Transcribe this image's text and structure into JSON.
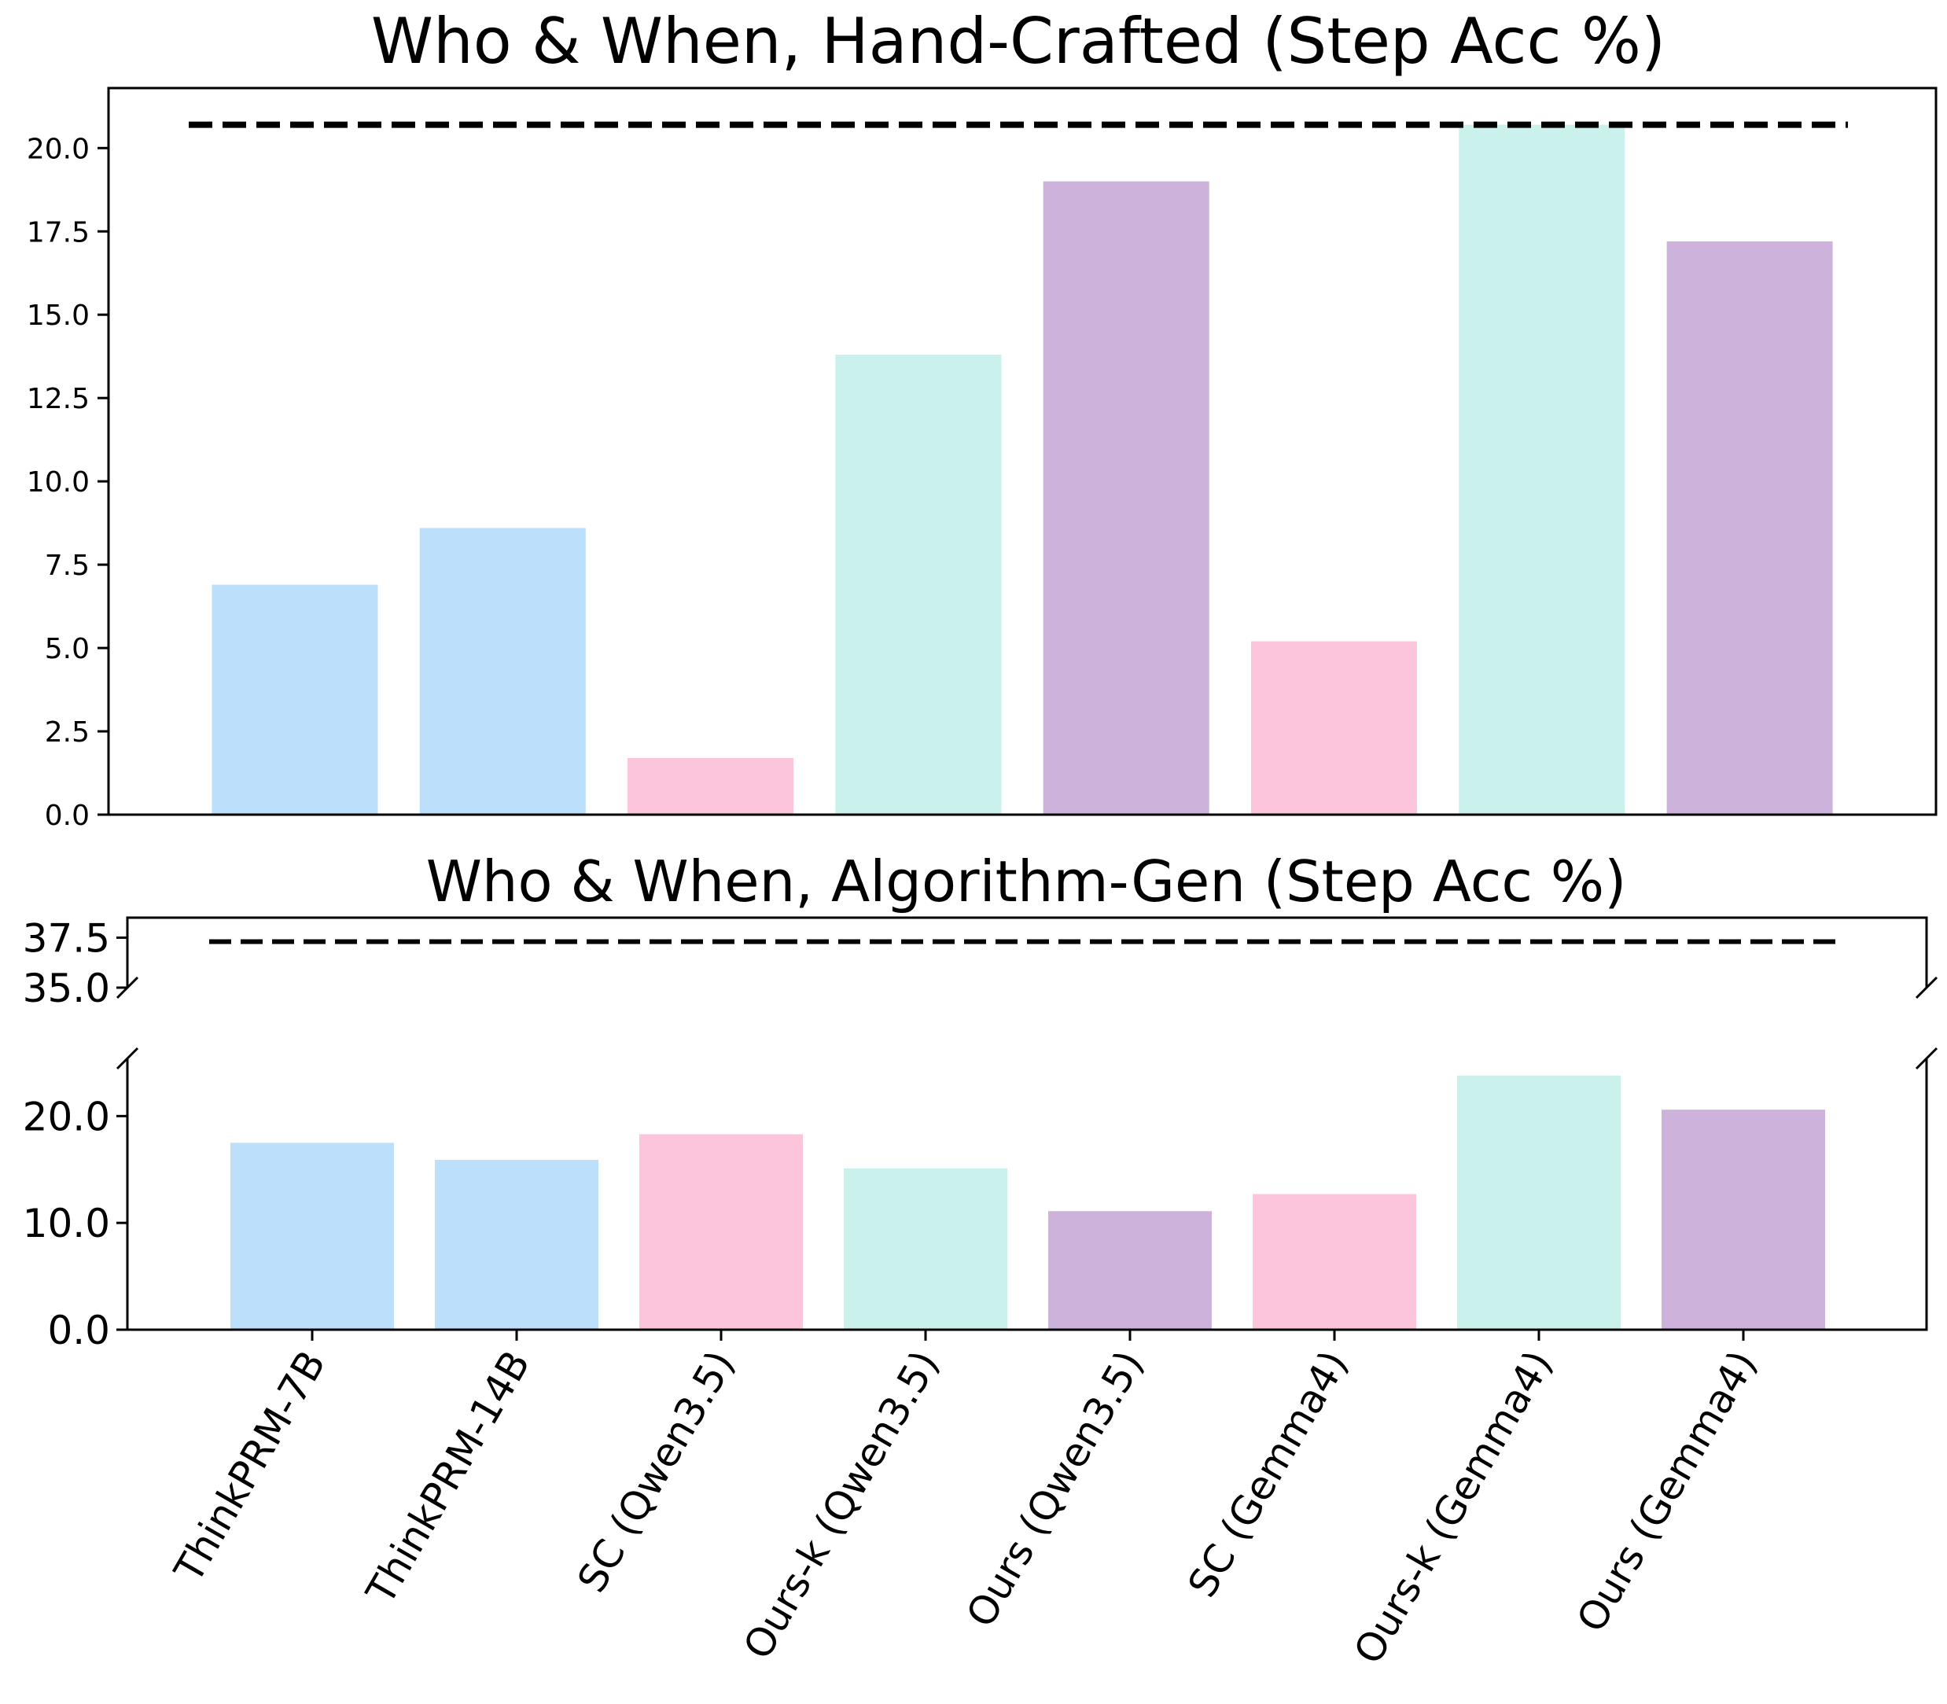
{
  "chart_data": [
    {
      "type": "bar",
      "title": "Who & When, Hand-Crafted (Step Acc %)",
      "categories": [
        "ThinkPRM-7B",
        "ThinkPRM-14B",
        "SC (Qwen3.5)",
        "Ours-k (Qwen3.5)",
        "Ours (Qwen3.5)",
        "SC (Gemma4)",
        "Ours-k (Gemma4)",
        "Ours (Gemma4)"
      ],
      "values": [
        6.9,
        8.6,
        1.7,
        13.8,
        19.0,
        5.2,
        20.7,
        17.2
      ],
      "colors": [
        "#bcdffb",
        "#bcdffb",
        "#fcc5dc",
        "#cbf1ed",
        "#cdb3db",
        "#fcc5dc",
        "#cbf1ed",
        "#cdb3db"
      ],
      "reference_line": 20.7,
      "ylim": [
        0,
        21.8
      ],
      "yticks": [
        "0.0",
        "2.5",
        "5.0",
        "7.5",
        "10.0",
        "12.5",
        "15.0",
        "17.5",
        "20.0"
      ],
      "show_xticks": false,
      "grid": false
    },
    {
      "type": "bar",
      "title": "Who & When, Algorithm-Gen (Step Acc %)",
      "categories": [
        "ThinkPRM-7B",
        "ThinkPRM-14B",
        "SC (Qwen3.5)",
        "Ours-k (Qwen3.5)",
        "Ours (Qwen3.5)",
        "SC (Gemma4)",
        "Ours-k (Gemma4)",
        "Ours (Gemma4)"
      ],
      "values": [
        17.5,
        15.9,
        18.3,
        15.1,
        11.1,
        12.7,
        23.8,
        20.6
      ],
      "colors": [
        "#bcdffb",
        "#bcdffb",
        "#fcc5dc",
        "#cbf1ed",
        "#cdb3db",
        "#fcc5dc",
        "#cbf1ed",
        "#cdb3db"
      ],
      "reference_line": 37.3,
      "broken_axis": true,
      "ylim_upper": [
        35.0,
        38.5
      ],
      "ylim_lower": [
        0,
        25.4
      ],
      "yticks_upper": [
        "35.0",
        "37.5"
      ],
      "yticks_lower": [
        "0.0",
        "10.0",
        "20.0"
      ],
      "grid": false
    }
  ]
}
